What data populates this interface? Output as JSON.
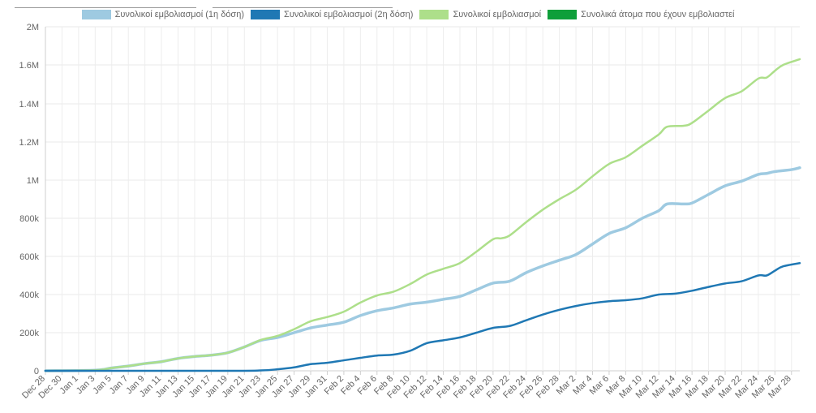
{
  "chart_data": {
    "type": "line",
    "y_ticks": [
      "0",
      "200k",
      "400k",
      "600k",
      "800k",
      "1M",
      "1.2M",
      "1.4M",
      "1.6M",
      "2M"
    ],
    "ylim": [
      0,
      1800000
    ],
    "x_start": "Dec 28",
    "x_tick_labels": [
      "Dec 28",
      "Dec 30",
      "Jan 1",
      "Jan 3",
      "Jan 5",
      "Jan 7",
      "Jan 9",
      "Jan 11",
      "Jan 13",
      "Jan 15",
      "Jan 17",
      "Jan 19",
      "Jan 21",
      "Jan 23",
      "Jan 25",
      "Jan 27",
      "Jan 29",
      "Jan 31",
      "Feb 2",
      "Feb 4",
      "Feb 6",
      "Feb 8",
      "Feb 10",
      "Feb 12",
      "Feb 14",
      "Feb 16",
      "Feb 18",
      "Feb 20",
      "Feb 22",
      "Feb 24",
      "Feb 26",
      "Feb 28",
      "Mar 2",
      "Mar 4",
      "Mar 6",
      "Mar 8",
      "Mar 10",
      "Mar 12",
      "Mar 14",
      "Mar 16",
      "Mar 18",
      "Mar 20",
      "Mar 22",
      "Mar 24",
      "Mar 26",
      "Mar 28"
    ],
    "grid": true,
    "legend": "top",
    "series": [
      {
        "name": "Συνολικοί εμβολιασμοί (1η δόση)",
        "color": "#9ecae1",
        "points": [
          [
            "Dec 28",
            0
          ],
          [
            "Jan 3",
            3000
          ],
          [
            "Jan 5",
            15000
          ],
          [
            "Jan 7",
            25000
          ],
          [
            "Jan 9",
            38000
          ],
          [
            "Jan 11",
            48000
          ],
          [
            "Jan 13",
            65000
          ],
          [
            "Jan 15",
            75000
          ],
          [
            "Jan 17",
            82000
          ],
          [
            "Jan 19",
            95000
          ],
          [
            "Jan 21",
            125000
          ],
          [
            "Jan 23",
            160000
          ],
          [
            "Jan 25",
            175000
          ],
          [
            "Jan 27",
            200000
          ],
          [
            "Jan 29",
            225000
          ],
          [
            "Jan 31",
            240000
          ],
          [
            "Feb 2",
            255000
          ],
          [
            "Feb 4",
            290000
          ],
          [
            "Feb 6",
            315000
          ],
          [
            "Feb 8",
            330000
          ],
          [
            "Feb 10",
            350000
          ],
          [
            "Feb 12",
            360000
          ],
          [
            "Feb 14",
            375000
          ],
          [
            "Feb 16",
            390000
          ],
          [
            "Feb 18",
            425000
          ],
          [
            "Feb 20",
            460000
          ],
          [
            "Feb 22",
            470000
          ],
          [
            "Feb 24",
            515000
          ],
          [
            "Feb 26",
            550000
          ],
          [
            "Feb 28",
            580000
          ],
          [
            "Mar 2",
            610000
          ],
          [
            "Mar 4",
            665000
          ],
          [
            "Mar 6",
            720000
          ],
          [
            "Mar 8",
            750000
          ],
          [
            "Mar 10",
            800000
          ],
          [
            "Mar 12",
            840000
          ],
          [
            "Mar 13",
            875000
          ],
          [
            "Mar 15",
            875000
          ],
          [
            "Mar 16",
            880000
          ],
          [
            "Mar 18",
            925000
          ],
          [
            "Mar 20",
            970000
          ],
          [
            "Mar 22",
            995000
          ],
          [
            "Mar 24",
            1030000
          ],
          [
            "Mar 25",
            1035000
          ],
          [
            "Mar 26",
            1045000
          ],
          [
            "Mar 28",
            1055000
          ],
          [
            "Mar 29",
            1065000
          ]
        ]
      },
      {
        "name": "Συνολικοί εμβολιασμοί (2η δόση)",
        "color": "#1f78b4",
        "points": [
          [
            "Dec 28",
            0
          ],
          [
            "Jan 19",
            0
          ],
          [
            "Jan 23",
            2000
          ],
          [
            "Jan 25",
            8000
          ],
          [
            "Jan 27",
            18000
          ],
          [
            "Jan 29",
            35000
          ],
          [
            "Jan 31",
            42000
          ],
          [
            "Feb 2",
            55000
          ],
          [
            "Feb 4",
            68000
          ],
          [
            "Feb 6",
            80000
          ],
          [
            "Feb 8",
            85000
          ],
          [
            "Feb 10",
            105000
          ],
          [
            "Feb 12",
            145000
          ],
          [
            "Feb 14",
            160000
          ],
          [
            "Feb 16",
            175000
          ],
          [
            "Feb 18",
            200000
          ],
          [
            "Feb 20",
            225000
          ],
          [
            "Feb 22",
            235000
          ],
          [
            "Feb 24",
            265000
          ],
          [
            "Feb 26",
            295000
          ],
          [
            "Feb 28",
            320000
          ],
          [
            "Mar 2",
            340000
          ],
          [
            "Mar 4",
            355000
          ],
          [
            "Mar 6",
            365000
          ],
          [
            "Mar 8",
            370000
          ],
          [
            "Mar 10",
            380000
          ],
          [
            "Mar 12",
            400000
          ],
          [
            "Mar 14",
            405000
          ],
          [
            "Mar 16",
            420000
          ],
          [
            "Mar 18",
            440000
          ],
          [
            "Mar 20",
            458000
          ],
          [
            "Mar 22",
            470000
          ],
          [
            "Mar 24",
            500000
          ],
          [
            "Mar 25",
            500000
          ],
          [
            "Mar 26",
            525000
          ],
          [
            "Mar 27",
            548000
          ],
          [
            "Mar 29",
            565000
          ]
        ]
      },
      {
        "name": "Συνολικοί εμβολιασμοί",
        "color": "#addf8a",
        "points": [
          [
            "Dec 28",
            0
          ],
          [
            "Jan 3",
            3000
          ],
          [
            "Jan 5",
            15000
          ],
          [
            "Jan 7",
            25000
          ],
          [
            "Jan 9",
            38000
          ],
          [
            "Jan 11",
            48000
          ],
          [
            "Jan 13",
            65000
          ],
          [
            "Jan 15",
            75000
          ],
          [
            "Jan 17",
            82000
          ],
          [
            "Jan 19",
            95000
          ],
          [
            "Jan 21",
            125000
          ],
          [
            "Jan 23",
            162000
          ],
          [
            "Jan 25",
            183000
          ],
          [
            "Jan 27",
            218000
          ],
          [
            "Jan 29",
            260000
          ],
          [
            "Jan 31",
            282000
          ],
          [
            "Feb 2",
            310000
          ],
          [
            "Feb 4",
            358000
          ],
          [
            "Feb 6",
            395000
          ],
          [
            "Feb 8",
            415000
          ],
          [
            "Feb 10",
            455000
          ],
          [
            "Feb 12",
            505000
          ],
          [
            "Feb 14",
            535000
          ],
          [
            "Feb 16",
            565000
          ],
          [
            "Feb 18",
            625000
          ],
          [
            "Feb 20",
            690000
          ],
          [
            "Feb 21",
            695000
          ],
          [
            "Feb 22",
            710000
          ],
          [
            "Feb 24",
            780000
          ],
          [
            "Feb 26",
            845000
          ],
          [
            "Feb 28",
            900000
          ],
          [
            "Mar 2",
            950000
          ],
          [
            "Mar 4",
            1020000
          ],
          [
            "Mar 6",
            1085000
          ],
          [
            "Mar 8",
            1120000
          ],
          [
            "Mar 10",
            1180000
          ],
          [
            "Mar 12",
            1240000
          ],
          [
            "Mar 13",
            1280000
          ],
          [
            "Mar 15",
            1285000
          ],
          [
            "Mar 16",
            1300000
          ],
          [
            "Mar 18",
            1365000
          ],
          [
            "Mar 20",
            1430000
          ],
          [
            "Mar 22",
            1465000
          ],
          [
            "Mar 24",
            1530000
          ],
          [
            "Mar 25",
            1535000
          ],
          [
            "Mar 26",
            1570000
          ],
          [
            "Mar 27",
            1600000
          ],
          [
            "Mar 29",
            1630000
          ]
        ]
      },
      {
        "name": "Συνολικά άτομα που έχουν εμβολιαστεί",
        "color": "#0e9f3a",
        "points": []
      }
    ]
  }
}
